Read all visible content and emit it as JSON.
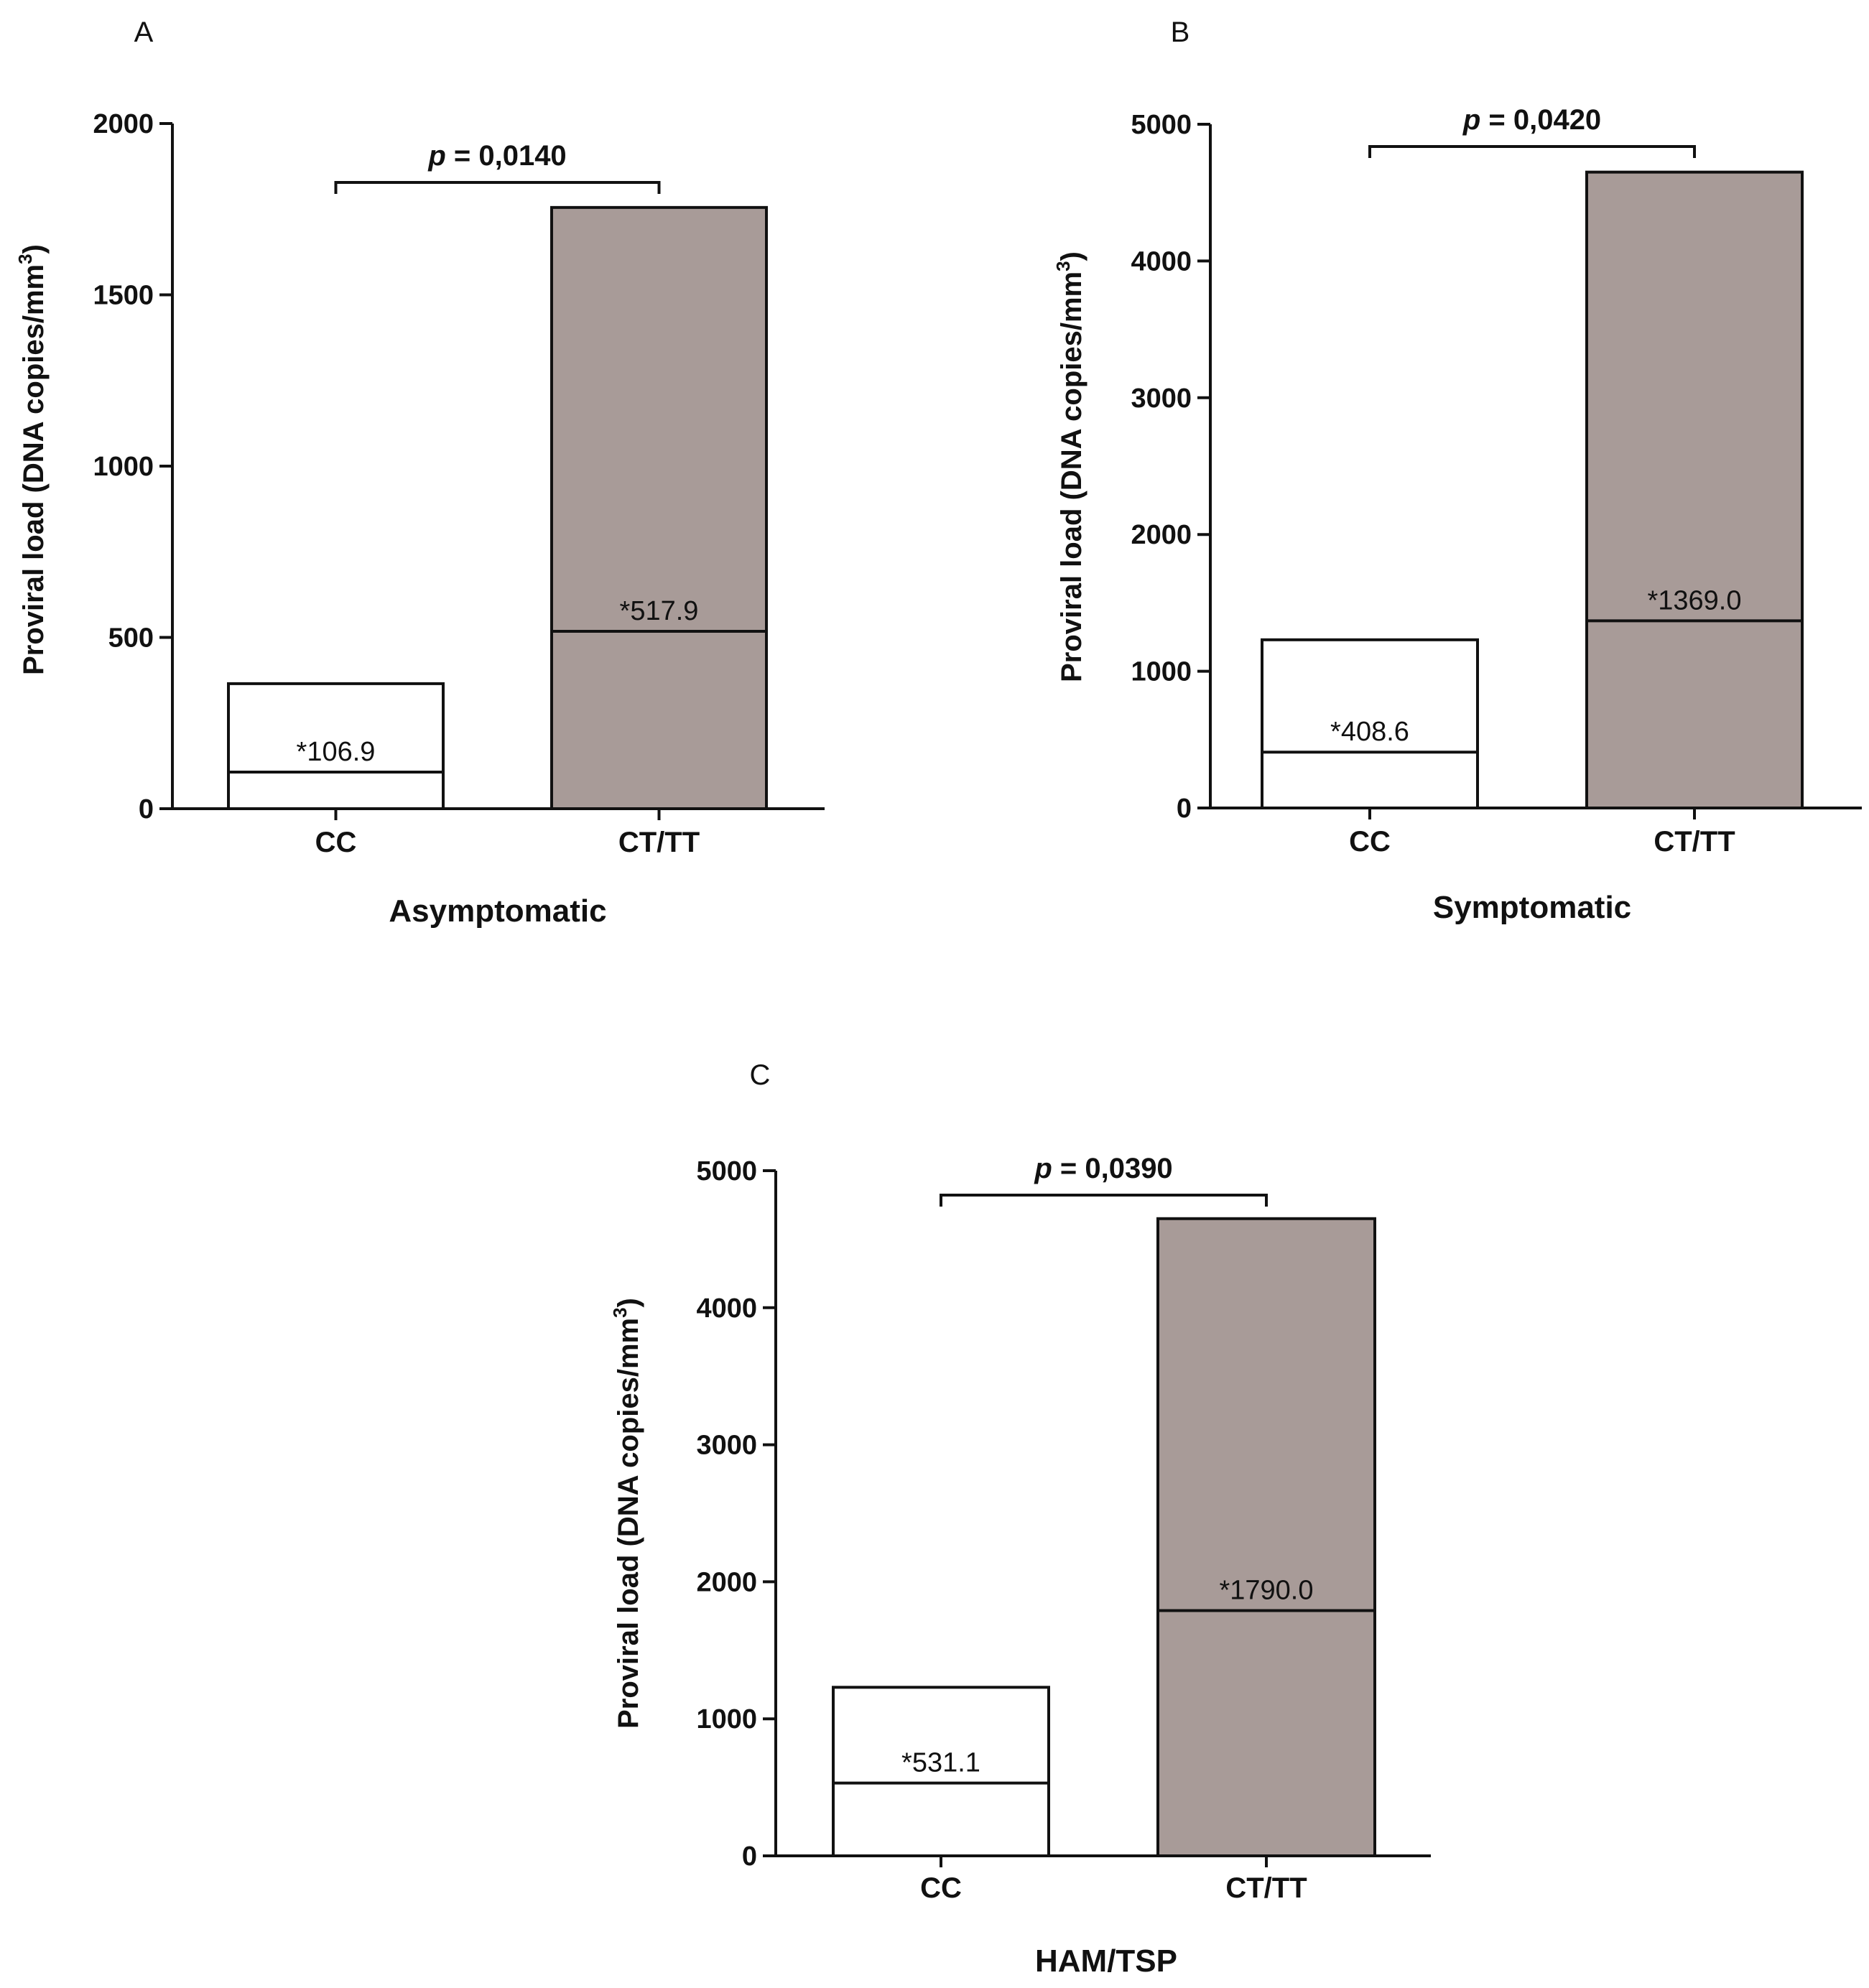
{
  "chart_data": [
    {
      "type": "bar",
      "panel": "A",
      "xlabel": "Asymptomatic",
      "ylabel": "Proviral load (DNA copies/mm",
      "ylabel_superscript": "3",
      "ylabel_close": ")",
      "ylim": [
        0,
        2000
      ],
      "ticks": [
        0,
        500,
        1000,
        1500,
        2000
      ],
      "tick_labels": [
        "0",
        "500",
        "1000",
        "1500",
        "2000"
      ],
      "categories": [
        "CC",
        "CT/TT"
      ],
      "values": [
        365,
        1755
      ],
      "medians": [
        106.9,
        517.9
      ],
      "median_labels": [
        "*106.9",
        "*517.9"
      ],
      "fills": [
        "#ffffff",
        "#a89b98"
      ],
      "pvalue_p": "p",
      "pvalue_rest": " = 0,0140"
    },
    {
      "type": "bar",
      "panel": "B",
      "xlabel": "Symptomatic",
      "ylabel": "Proviral load (DNA copies/mm",
      "ylabel_superscript": "3",
      "ylabel_close": ")",
      "ylim": [
        0,
        5000
      ],
      "ticks": [
        0,
        1000,
        2000,
        3000,
        4000,
        5000
      ],
      "tick_labels": [
        "0",
        "1000",
        "2000",
        "3000",
        "4000",
        "5000"
      ],
      "categories": [
        "CC",
        "CT/TT"
      ],
      "values": [
        1230,
        4650
      ],
      "medians": [
        408.6,
        1369.0
      ],
      "median_labels": [
        "*408.6",
        "*1369.0"
      ],
      "fills": [
        "#ffffff",
        "#a89b98"
      ],
      "pvalue_p": "p",
      "pvalue_rest": " = 0,0420"
    },
    {
      "type": "bar",
      "panel": "C",
      "xlabel": "HAM/TSP",
      "ylabel": "Proviral load (DNA copies/mm",
      "ylabel_superscript": "3",
      "ylabel_close": ")",
      "ylim": [
        0,
        5000
      ],
      "ticks": [
        0,
        1000,
        2000,
        3000,
        4000,
        5000
      ],
      "tick_labels": [
        "0",
        "1000",
        "2000",
        "3000",
        "4000",
        "5000"
      ],
      "categories": [
        "CC",
        "CT/TT"
      ],
      "values": [
        1230,
        4650
      ],
      "medians": [
        531.1,
        1790.0
      ],
      "median_labels": [
        "*531.1",
        "*1790.0"
      ],
      "fills": [
        "#ffffff",
        "#a89b98"
      ],
      "pvalue_p": "p",
      "pvalue_rest": " = 0,0390"
    }
  ]
}
